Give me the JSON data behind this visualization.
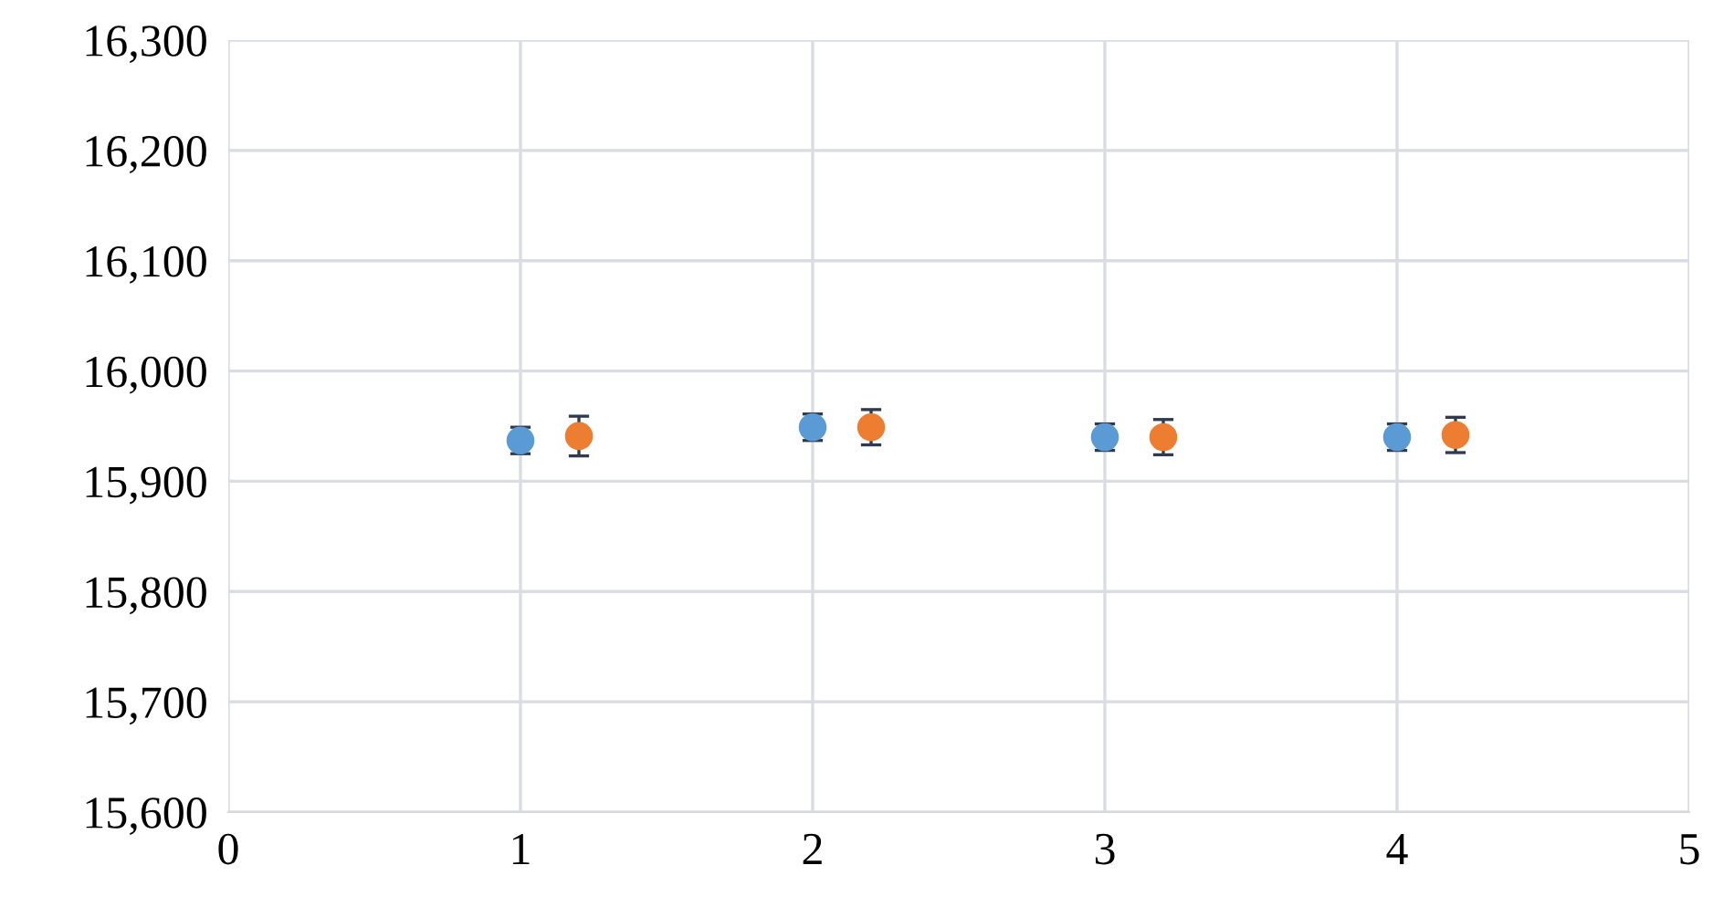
{
  "chart_data": {
    "type": "scatter",
    "xlim": [
      0,
      5
    ],
    "xticks": [
      0,
      1,
      2,
      3,
      4,
      5
    ],
    "ylim": [
      15600,
      16300
    ],
    "yticks": [
      {
        "value": 15600,
        "label": "15,600"
      },
      {
        "value": 15700,
        "label": "15,700"
      },
      {
        "value": 15800,
        "label": "15,800"
      },
      {
        "value": 15900,
        "label": "15,900"
      },
      {
        "value": 16000,
        "label": "16,000"
      },
      {
        "value": 16100,
        "label": "16,100"
      },
      {
        "value": 16200,
        "label": "16,200"
      },
      {
        "value": 16300,
        "label": "16,300"
      }
    ],
    "grid": true,
    "marker": "circle",
    "series": [
      {
        "color": "#5b9bd5",
        "x": [
          1,
          2,
          3,
          4
        ],
        "values": [
          15937,
          15949,
          15940,
          15940
        ],
        "errors": [
          12,
          12,
          12,
          12
        ]
      },
      {
        "color": "#ed7d31",
        "x": [
          1.2,
          2.2,
          3.2,
          4.2
        ],
        "values": [
          15941,
          15949,
          15940,
          15942
        ],
        "errors": [
          18,
          16,
          16,
          16
        ]
      }
    ]
  }
}
